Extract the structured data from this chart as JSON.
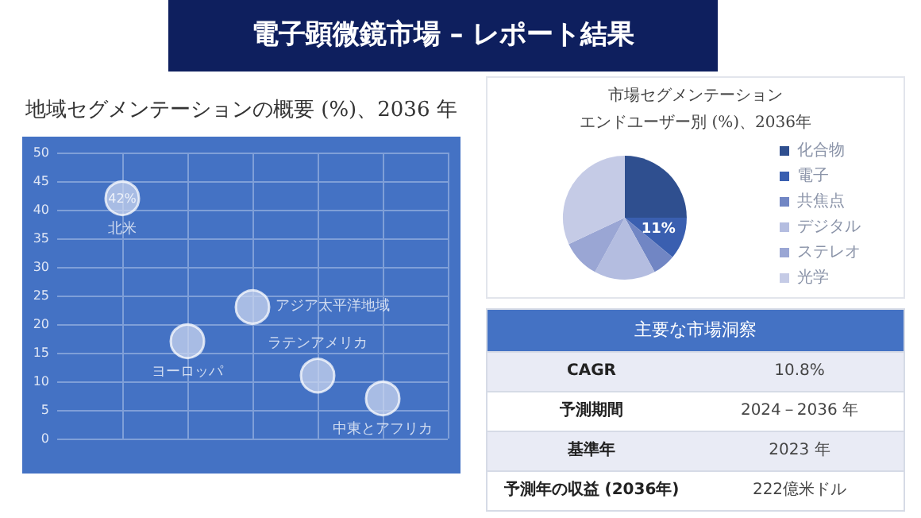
{
  "chart_data": [
    {
      "type": "bubble",
      "title": "電子顕微鏡市場 – レポート結果",
      "subtitle": "地域セグメンテーションの概要 (%)、2036 年",
      "categories": [
        null,
        null,
        null,
        null,
        null,
        null,
        null
      ],
      "ylim": [
        0,
        50
      ],
      "yticks": [
        0,
        5,
        10,
        15,
        20,
        25,
        30,
        35,
        40,
        45,
        50
      ],
      "grid": true,
      "legend": false,
      "tick_labels": "y",
      "series": [
        {
          "name": "北米",
          "color": "#c9d6ef",
          "values": [
            null,
            42,
            null,
            null,
            null,
            null,
            null
          ],
          "sizes": [
            null,
            1,
            null,
            null,
            null,
            null,
            null
          ],
          "value_labels": [
            null,
            "42%",
            null,
            null,
            null,
            null,
            null
          ]
        },
        {
          "name": "ヨーロッパ",
          "color": "#c9d6ef",
          "values": [
            null,
            null,
            17,
            null,
            null,
            null,
            null
          ],
          "sizes": [
            null,
            null,
            1,
            null,
            null,
            null,
            null
          ]
        },
        {
          "name": "アジア太平洋地域",
          "color": "#c9d6ef",
          "values": [
            null,
            null,
            null,
            23,
            null,
            null,
            null
          ],
          "sizes": [
            null,
            null,
            null,
            1,
            null,
            null,
            null
          ]
        },
        {
          "name": "ラテンアメリカ",
          "color": "#c9d6ef",
          "values": [
            null,
            null,
            null,
            null,
            11,
            null,
            null
          ],
          "sizes": [
            null,
            null,
            null,
            null,
            1,
            null,
            null
          ]
        },
        {
          "name": "中東とアフリカ",
          "color": "#c9d6ef",
          "values": [
            null,
            null,
            null,
            null,
            null,
            7,
            null
          ],
          "sizes": [
            null,
            null,
            null,
            null,
            null,
            1,
            null
          ]
        }
      ]
    },
    {
      "type": "pie",
      "title": "市場セグメンテーション",
      "subtitle": "エンドユーザー別 (%)、2036年",
      "categories": [
        "化合物",
        "電子",
        "共焦点",
        "デジタル",
        "ステレオ",
        "光学"
      ],
      "values": [
        25,
        11,
        6,
        16,
        10,
        32
      ],
      "colors": [
        "#2f4f8f",
        "#3a5fb0",
        "#7186c4",
        "#b4bde0",
        "#9aa6d4",
        "#c5cbe6"
      ],
      "value_labels": [
        null,
        "11%",
        null,
        null,
        null,
        null
      ],
      "legend": "right"
    },
    {
      "type": "other",
      "title": "主要な市場洞察",
      "annotations": [
        "CAGR",
        "10.8%",
        "予測期間",
        "2024－2036 年",
        "基準年",
        "2023 年",
        "予測年の収益 (2036年)",
        "222億米ドル"
      ]
    }
  ]
}
